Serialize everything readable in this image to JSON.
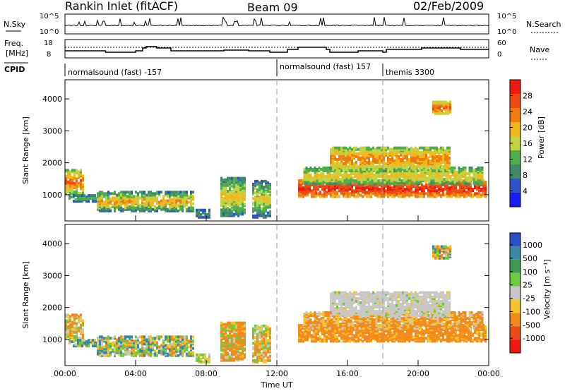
{
  "header": {
    "station": "Rankin Inlet (fitACF)",
    "beam": "Beam 09",
    "date": "02/Feb/2009"
  },
  "panels": {
    "nsky": {
      "label": "N.Sky",
      "ticks": [
        "10^5",
        "10^0"
      ],
      "right_ticks": [
        "10^5",
        "10^0"
      ],
      "right_label": "N.Search"
    },
    "freq": {
      "label_line1": "Freq.",
      "label_line2": "[MHz]",
      "ticks": [
        "18",
        "8"
      ],
      "right_ticks": [
        "60",
        "0"
      ],
      "right_label": "Nave"
    },
    "cpid": {
      "label": "CPID",
      "segments": [
        {
          "start": 0.0,
          "text": "normalsound (fast) -157"
        },
        {
          "start": 12.0,
          "text": "normalsound (fast) 157"
        },
        {
          "start": 18.0,
          "text": "themis 3300"
        }
      ]
    }
  },
  "chart_data": [
    {
      "type": "heatmap",
      "quantity": "Power",
      "ylabel": "Slant Range [km]",
      "xlabel": "",
      "x_range_hours": [
        0,
        24
      ],
      "ylim": [
        180,
        4600
      ],
      "yticks": [
        1000,
        2000,
        3000,
        4000
      ],
      "colorbar": {
        "label": "Power [dB]",
        "ticks": [
          "4",
          "8",
          "12",
          "16",
          "20",
          "24",
          "28"
        ],
        "range": [
          0,
          32
        ]
      },
      "colors": [
        "#1a1aff",
        "#2d54c8",
        "#3f8a6a",
        "#4cae4c",
        "#bfd440",
        "#f2b61a",
        "#ef7a10",
        "#ee4a10",
        "#ee1a10"
      ]
    },
    {
      "type": "heatmap",
      "quantity": "Velocity",
      "ylabel": "Slant Range [km]",
      "xlabel": "Time UT",
      "x_range_hours": [
        0,
        24
      ],
      "xticks": [
        "00:00",
        "04:00",
        "08:00",
        "12:00",
        "16:00",
        "20:00",
        "00:00"
      ],
      "ylim": [
        180,
        4600
      ],
      "yticks": [
        1000,
        2000,
        3000,
        4000
      ],
      "colorbar": {
        "label": "Velocity [m s⁻¹]",
        "ticks": [
          "1000",
          "500",
          "100",
          "25",
          "-25",
          "-100",
          "-500",
          "-1000"
        ]
      },
      "colors": [
        "#2b4fc4",
        "#3a88a4",
        "#3f9a50",
        "#6ccc3c",
        "#c8c8c8",
        "#f4c22a",
        "#f28a1c",
        "#ef4a14",
        "#ee1a10"
      ]
    }
  ],
  "echo_regions": [
    {
      "t0": 0.0,
      "t1": 1.0,
      "r0": 1000,
      "r1": 1750,
      "p": [
        10,
        26
      ],
      "v": [
        -300,
        100
      ]
    },
    {
      "t0": 0.2,
      "t1": 2.0,
      "r0": 750,
      "r1": 950,
      "p": [
        4,
        14
      ],
      "v": [
        -100,
        300
      ]
    },
    {
      "t0": 1.8,
      "t1": 7.3,
      "r0": 450,
      "r1": 1050,
      "p": [
        4,
        22
      ],
      "v": [
        -150,
        200
      ]
    },
    {
      "t0": 7.4,
      "t1": 8.2,
      "r0": 250,
      "r1": 500,
      "p": [
        4,
        10
      ],
      "v": [
        -100,
        100
      ]
    },
    {
      "t0": 8.8,
      "t1": 10.2,
      "r0": 300,
      "r1": 1500,
      "p": [
        4,
        20
      ],
      "v": [
        -500,
        100
      ]
    },
    {
      "t0": 10.6,
      "t1": 11.6,
      "r0": 250,
      "r1": 1400,
      "p": [
        4,
        18
      ],
      "v": [
        -200,
        100
      ]
    },
    {
      "t0": 13.2,
      "t1": 23.8,
      "r0": 900,
      "r1": 1400,
      "p": [
        18,
        30
      ],
      "v": [
        -500,
        -25
      ]
    },
    {
      "t0": 13.5,
      "t1": 23.6,
      "r0": 1300,
      "r1": 1800,
      "p": [
        8,
        20
      ],
      "v": [
        -300,
        25
      ]
    },
    {
      "t0": 15.0,
      "t1": 21.8,
      "r0": 1700,
      "r1": 2450,
      "p": [
        10,
        24
      ],
      "v": [
        -30,
        30
      ]
    },
    {
      "t0": 20.8,
      "t1": 21.8,
      "r0": 3500,
      "r1": 3900,
      "p": [
        14,
        26
      ],
      "v": [
        -200,
        200
      ]
    }
  ]
}
